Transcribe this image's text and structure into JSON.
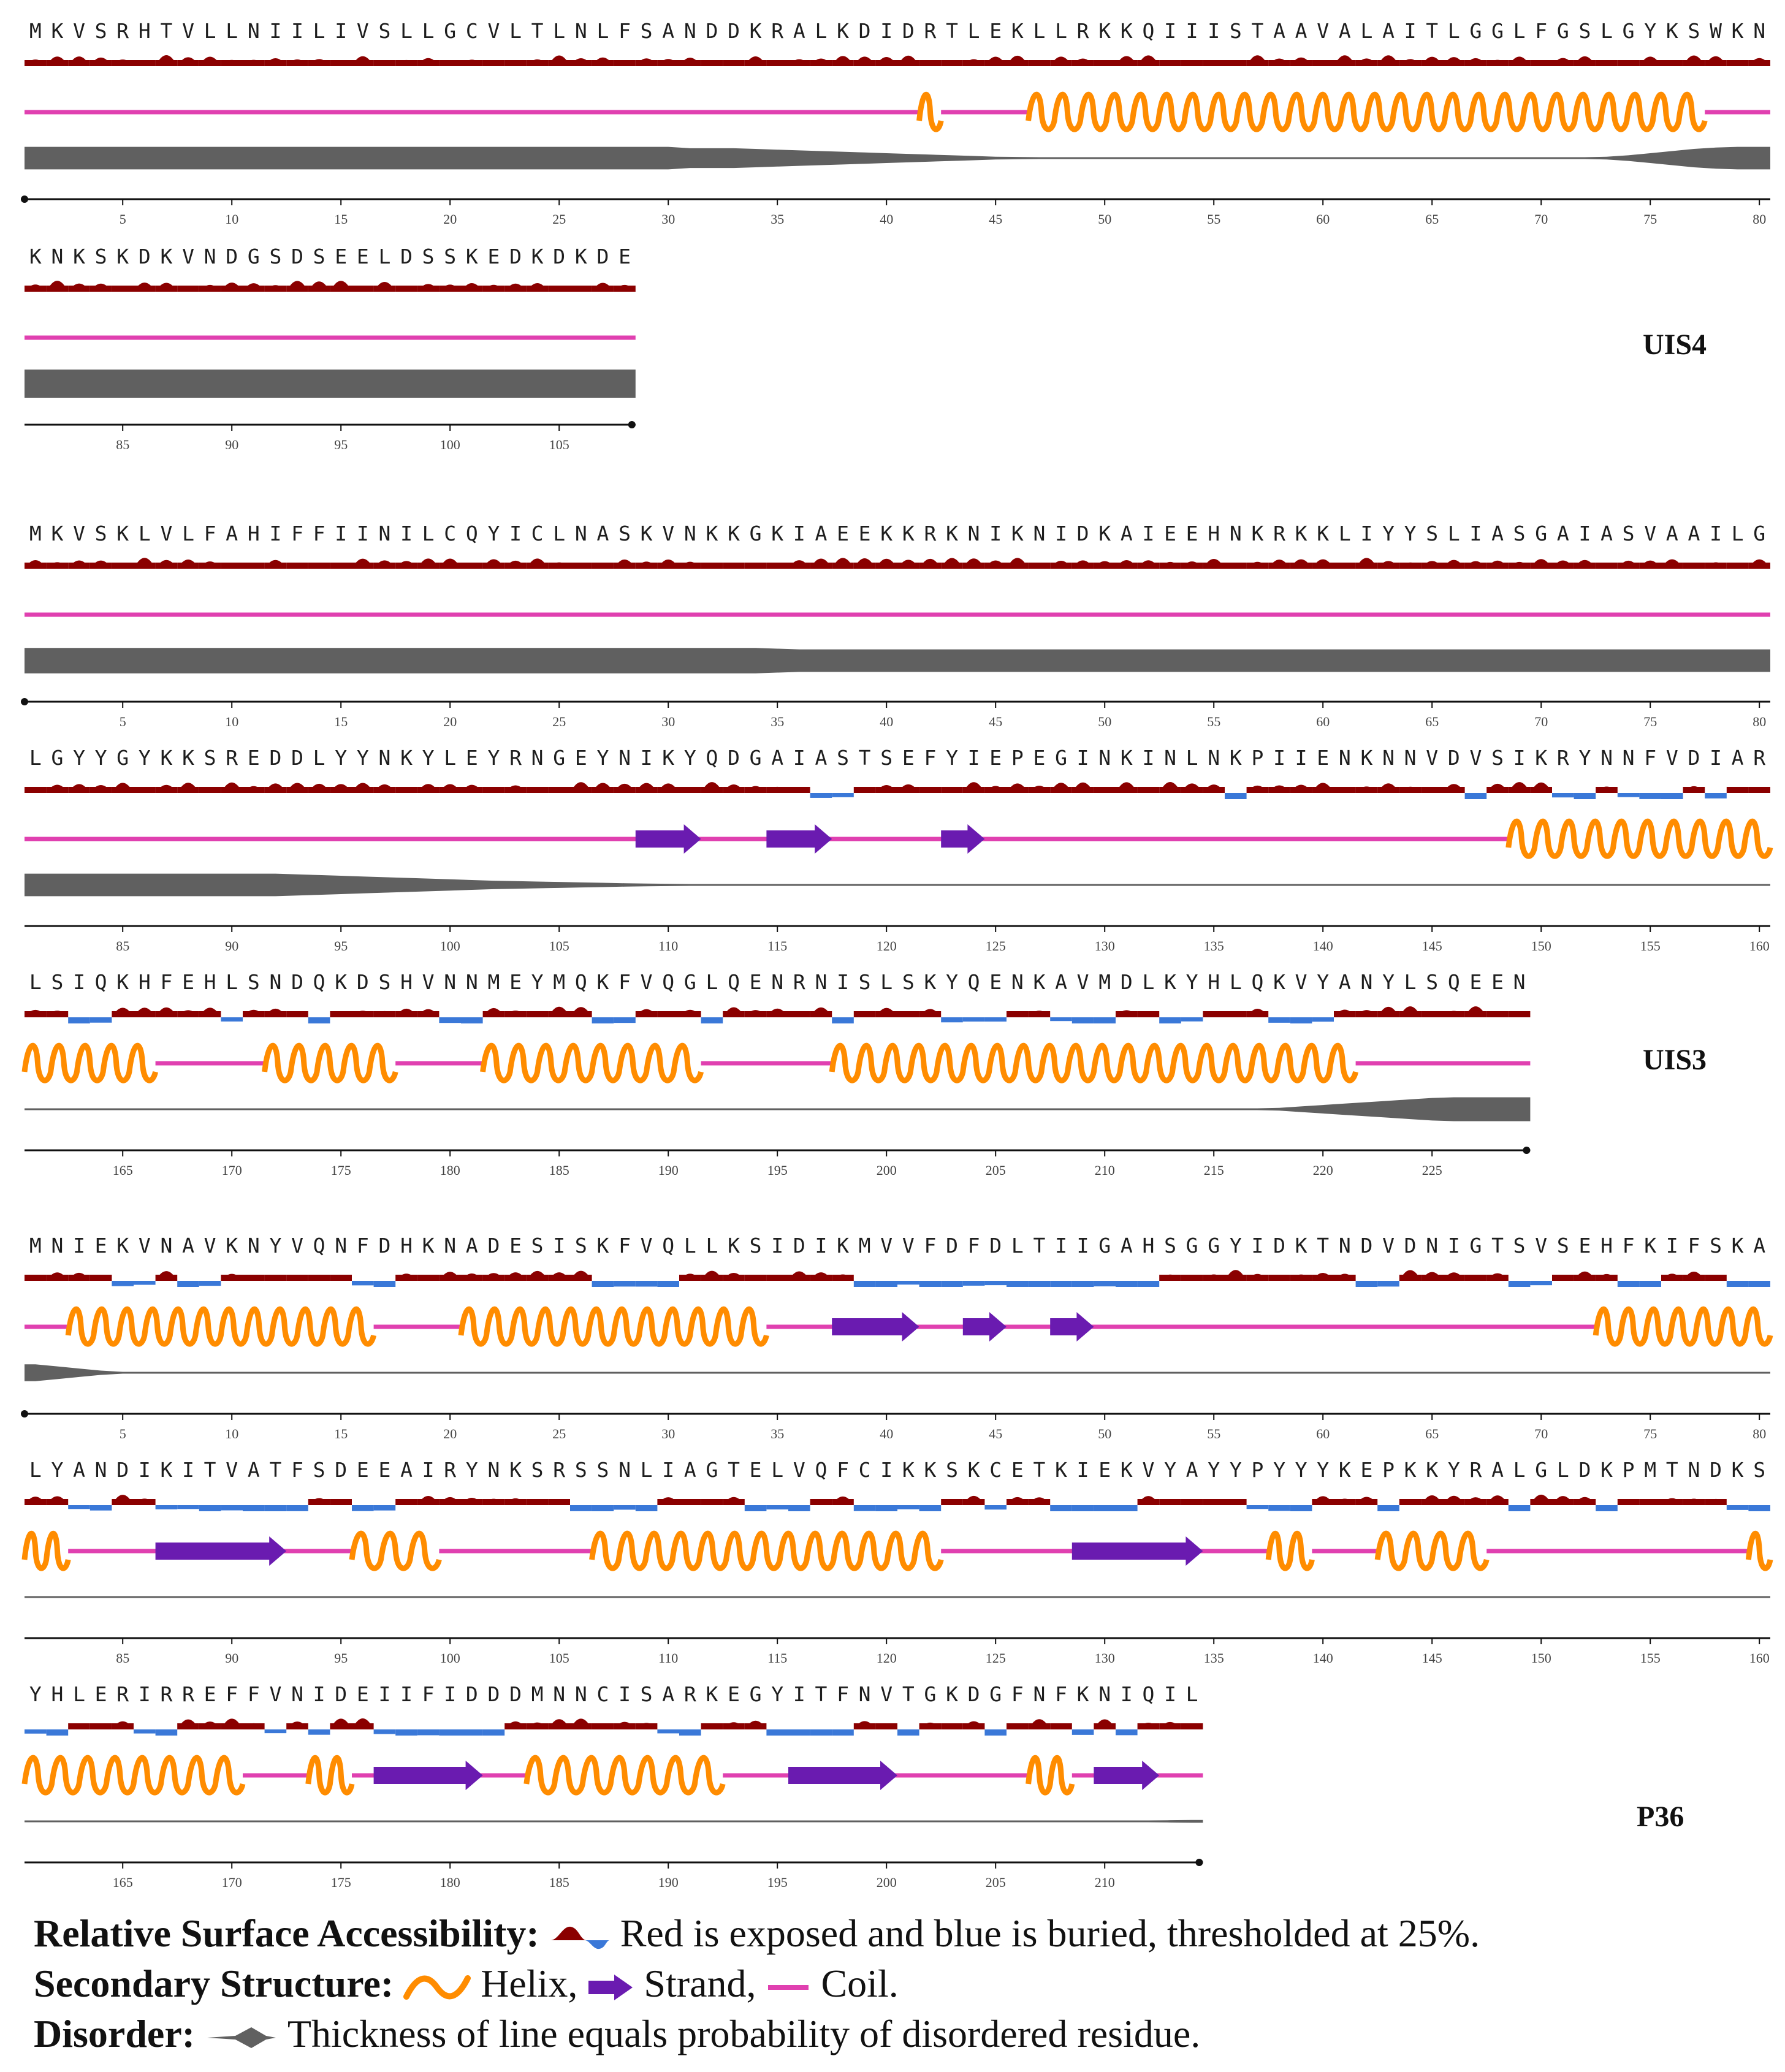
{
  "proteins": [
    {
      "name": "UIS4",
      "rows": [
        {
          "sequence": "MKVSRHTVLLNIILIVSLLGCVLTLNLFSANDDKRALKDIDRTLEKLLRKKQIIISTAAVALAITLGGLFGSLGYKSWKN",
          "start": 1,
          "ticks": [
            5,
            10,
            15,
            20,
            25,
            30,
            35,
            40,
            45,
            50,
            55,
            60,
            65,
            70,
            75,
            80
          ],
          "helix": [
            [
              42,
              42
            ],
            [
              47,
              77
            ]
          ],
          "strand": [],
          "buried": [],
          "disorder": [
            0.8,
            0.8,
            0.8,
            0.8,
            0.8,
            0.8,
            0.8,
            0.8,
            0.8,
            0.8,
            0.8,
            0.8,
            0.8,
            0.8,
            0.8,
            0.8,
            0.8,
            0.8,
            0.8,
            0.8,
            0.8,
            0.8,
            0.8,
            0.8,
            0.8,
            0.8,
            0.8,
            0.8,
            0.8,
            0.8,
            0.7,
            0.7,
            0.7,
            0.65,
            0.6,
            0.55,
            0.5,
            0.45,
            0.4,
            0.35,
            0.3,
            0.25,
            0.2,
            0.15,
            0.1,
            0.08,
            0.05,
            0.04,
            0.03,
            0.03,
            0.03,
            0.03,
            0.03,
            0.03,
            0.03,
            0.03,
            0.03,
            0.03,
            0.03,
            0.03,
            0.03,
            0.03,
            0.03,
            0.03,
            0.03,
            0.03,
            0.03,
            0.03,
            0.03,
            0.03,
            0.03,
            0.05,
            0.1,
            0.2,
            0.35,
            0.5,
            0.65,
            0.75,
            0.8,
            0.8
          ]
        },
        {
          "sequence": "KNKSKDKVNDGSDSEELDSSKEDKDKDE",
          "start": 81,
          "ticks": [
            85,
            90,
            95,
            100,
            105
          ],
          "helix": [],
          "strand": [],
          "buried": [],
          "disorder": [
            1,
            1,
            1,
            1,
            1,
            1,
            1,
            1,
            1,
            1,
            1,
            1,
            1,
            1,
            1,
            1,
            1,
            1,
            1,
            1,
            1,
            1,
            1,
            1,
            1,
            1,
            1,
            1
          ]
        }
      ]
    },
    {
      "name": "UIS3",
      "rows": [
        {
          "sequence": "MKVSKLVLFAHIFFIINILCQYICLNASKVNKKGKIAEEKKRKNIKNIDKAIEEHNKRKKLIYYSLIASGAIASVAAILG",
          "start": 1,
          "ticks": [
            5,
            10,
            15,
            20,
            25,
            30,
            35,
            40,
            45,
            50,
            55,
            60,
            65,
            70,
            75,
            80
          ],
          "helix": [],
          "strand": [],
          "buried": [],
          "disorder": [
            0.9,
            0.9,
            0.9,
            0.9,
            0.9,
            0.9,
            0.9,
            0.9,
            0.9,
            0.9,
            0.9,
            0.9,
            0.9,
            0.9,
            0.9,
            0.9,
            0.9,
            0.9,
            0.9,
            0.9,
            0.9,
            0.9,
            0.9,
            0.9,
            0.9,
            0.9,
            0.9,
            0.9,
            0.9,
            0.9,
            0.9,
            0.9,
            0.9,
            0.9,
            0.85,
            0.8,
            0.8,
            0.8,
            0.8,
            0.8,
            0.8,
            0.8,
            0.8,
            0.8,
            0.8,
            0.8,
            0.8,
            0.8,
            0.8,
            0.8,
            0.8,
            0.8,
            0.8,
            0.8,
            0.8,
            0.8,
            0.8,
            0.8,
            0.8,
            0.8,
            0.8,
            0.8,
            0.8,
            0.8,
            0.8,
            0.8,
            0.8,
            0.8,
            0.8,
            0.8,
            0.8,
            0.8,
            0.8,
            0.8,
            0.8,
            0.8,
            0.8,
            0.8,
            0.8,
            0.8
          ]
        },
        {
          "sequence": "LGYYGYKKSREDDLYYNKYLEYRNGEYNIKYQDGAIASTSEFYIEPEGINKINLNKPIIENKNNVDVSIKRYNNFVDIAR",
          "start": 81,
          "ticks": [
            85,
            90,
            95,
            100,
            105,
            110,
            115,
            120,
            125,
            130,
            135,
            140,
            145,
            150,
            155,
            160
          ],
          "helix": [
            [
              149,
              160
            ]
          ],
          "strand": [
            [
              109,
              111
            ],
            [
              115,
              117
            ],
            [
              123,
              124
            ]
          ],
          "buried": [
            [
              117,
              118
            ],
            [
              136,
              136
            ],
            [
              147,
              147
            ],
            [
              151,
              152
            ],
            [
              154,
              156
            ],
            [
              158,
              158
            ]
          ],
          "disorder": [
            0.8,
            0.8,
            0.8,
            0.8,
            0.8,
            0.8,
            0.8,
            0.8,
            0.8,
            0.8,
            0.8,
            0.8,
            0.75,
            0.7,
            0.65,
            0.6,
            0.55,
            0.5,
            0.45,
            0.4,
            0.35,
            0.3,
            0.27,
            0.24,
            0.21,
            0.18,
            0.15,
            0.12,
            0.1,
            0.08,
            0.06,
            0.05,
            0.05,
            0.05,
            0.05,
            0.05,
            0.05,
            0.05,
            0.05,
            0.05,
            0.05,
            0.05,
            0.05,
            0.05,
            0.05,
            0.05,
            0.05,
            0.05,
            0.05,
            0.05,
            0.05,
            0.05,
            0.05,
            0.05,
            0.05,
            0.05,
            0.05,
            0.05,
            0.05,
            0.05,
            0.05,
            0.05,
            0.05,
            0.05,
            0.05,
            0.05,
            0.05,
            0.05,
            0.05,
            0.05,
            0.05,
            0.05,
            0.05,
            0.05,
            0.05,
            0.05,
            0.05,
            0.05,
            0.05,
            0.05
          ]
        },
        {
          "sequence": "LSIQKHFEHLSNDQKDSHVNNMEYMQKFVQGLQENRNISLSKYQENKAVMDLKYHLQKVYANYLSQEEN",
          "start": 161,
          "ticks": [
            165,
            170,
            175,
            180,
            185,
            190,
            195,
            200,
            205,
            210,
            215,
            220,
            225
          ],
          "helix": [
            [
              161,
              166
            ],
            [
              172,
              177
            ],
            [
              182,
              191
            ],
            [
              198,
              221
            ]
          ],
          "strand": [],
          "buried": [
            [
              163,
              164
            ],
            [
              170,
              170
            ],
            [
              174,
              174
            ],
            [
              180,
              181
            ],
            [
              187,
              188
            ],
            [
              192,
              192
            ],
            [
              198,
              198
            ],
            [
              203,
              205
            ],
            [
              208,
              210
            ],
            [
              213,
              214
            ],
            [
              218,
              220
            ]
          ],
          "disorder": [
            0.05,
            0.05,
            0.05,
            0.05,
            0.05,
            0.05,
            0.05,
            0.05,
            0.05,
            0.05,
            0.05,
            0.05,
            0.05,
            0.05,
            0.05,
            0.05,
            0.05,
            0.05,
            0.05,
            0.05,
            0.05,
            0.05,
            0.05,
            0.05,
            0.05,
            0.05,
            0.05,
            0.05,
            0.05,
            0.05,
            0.05,
            0.05,
            0.05,
            0.05,
            0.05,
            0.05,
            0.05,
            0.05,
            0.05,
            0.05,
            0.05,
            0.05,
            0.05,
            0.05,
            0.05,
            0.05,
            0.05,
            0.05,
            0.05,
            0.05,
            0.05,
            0.05,
            0.05,
            0.05,
            0.05,
            0.05,
            0.05,
            0.1,
            0.2,
            0.3,
            0.4,
            0.5,
            0.6,
            0.7,
            0.8,
            0.85,
            0.85,
            0.85,
            0.85
          ]
        }
      ]
    },
    {
      "name": "P36",
      "rows": [
        {
          "sequence": "MNIEKVNAVKNYVQNFDHKNADESISKFVQLLKSIDIKMVVFDFDLTIIGAHSGGYIDKTNDVDNIGTSVSEHFKIFSKA",
          "start": 1,
          "ticks": [
            5,
            10,
            15,
            20,
            25,
            30,
            35,
            40,
            45,
            50,
            55,
            60,
            65,
            70,
            75,
            80
          ],
          "helix": [
            [
              3,
              16
            ],
            [
              21,
              34
            ],
            [
              73,
              80
            ]
          ],
          "strand": [
            [
              38,
              41
            ],
            [
              44,
              45
            ],
            [
              48,
              49
            ]
          ],
          "buried": [
            [
              5,
              6
            ],
            [
              8,
              9
            ],
            [
              16,
              17
            ],
            [
              27,
              30
            ],
            [
              39,
              52
            ],
            [
              62,
              63
            ],
            [
              69,
              70
            ],
            [
              74,
              75
            ],
            [
              79,
              80
            ]
          ],
          "disorder": [
            0.6,
            0.45,
            0.3,
            0.15,
            0.05,
            0.03,
            0.03,
            0.03,
            0.03,
            0.03,
            0.03,
            0.03,
            0.03,
            0.03,
            0.03,
            0.03,
            0.03,
            0.03,
            0.03,
            0.03,
            0.03,
            0.03,
            0.03,
            0.03,
            0.03,
            0.03,
            0.03,
            0.03,
            0.03,
            0.03,
            0.03,
            0.03,
            0.03,
            0.03,
            0.03,
            0.03,
            0.03,
            0.03,
            0.03,
            0.03,
            0.03,
            0.03,
            0.03,
            0.03,
            0.03,
            0.03,
            0.03,
            0.03,
            0.03,
            0.03,
            0.03,
            0.03,
            0.03,
            0.03,
            0.03,
            0.03,
            0.03,
            0.03,
            0.03,
            0.03,
            0.03,
            0.03,
            0.03,
            0.03,
            0.03,
            0.03,
            0.03,
            0.03,
            0.03,
            0.03,
            0.03,
            0.03,
            0.03,
            0.03,
            0.03,
            0.03,
            0.03,
            0.03,
            0.03,
            0.03
          ]
        },
        {
          "sequence": "LYANDIKITVATFSDEEAIRYNKSRSSNLIAGTELVQFCIKKSKCETKIEKVYAYYPYYYKEPKKYRALGLDKPMTNDKS",
          "start": 81,
          "ticks": [
            85,
            90,
            95,
            100,
            105,
            110,
            115,
            120,
            125,
            130,
            135,
            140,
            145,
            150,
            155,
            160
          ],
          "helix": [
            [
              81,
              82
            ],
            [
              96,
              99
            ],
            [
              107,
              122
            ],
            [
              138,
              139
            ],
            [
              143,
              147
            ],
            [
              160,
              160
            ]
          ],
          "strand": [
            [
              87,
              92
            ],
            [
              129,
              134
            ]
          ],
          "buried": [
            [
              83,
              84
            ],
            [
              87,
              93
            ],
            [
              96,
              97
            ],
            [
              106,
              109
            ],
            [
              114,
              116
            ],
            [
              119,
              122
            ],
            [
              125,
              125
            ],
            [
              128,
              131
            ],
            [
              137,
              139
            ],
            [
              143,
              143
            ],
            [
              149,
              149
            ],
            [
              153,
              153
            ],
            [
              159,
              160
            ]
          ],
          "disorder": [
            0.03,
            0.03,
            0.03,
            0.03,
            0.03,
            0.03,
            0.03,
            0.03,
            0.03,
            0.03,
            0.03,
            0.03,
            0.03,
            0.03,
            0.03,
            0.03,
            0.03,
            0.03,
            0.03,
            0.03,
            0.03,
            0.03,
            0.03,
            0.03,
            0.03,
            0.03,
            0.03,
            0.03,
            0.03,
            0.03,
            0.03,
            0.03,
            0.03,
            0.03,
            0.03,
            0.03,
            0.03,
            0.03,
            0.03,
            0.03,
            0.03,
            0.03,
            0.03,
            0.03,
            0.03,
            0.03,
            0.03,
            0.03,
            0.03,
            0.03,
            0.03,
            0.03,
            0.03,
            0.03,
            0.03,
            0.03,
            0.03,
            0.03,
            0.03,
            0.03,
            0.03,
            0.03,
            0.03,
            0.03,
            0.03,
            0.03,
            0.03,
            0.03,
            0.03,
            0.03,
            0.03,
            0.03,
            0.03,
            0.03,
            0.03,
            0.03,
            0.03,
            0.03,
            0.03,
            0.03
          ]
        },
        {
          "sequence": "YHLERIRREFFVNIDEIIFIDDDMNNCISARKEGYITFNVTGKDGFNFKNIQIL",
          "start": 161,
          "ticks": [
            165,
            170,
            175,
            180,
            185,
            190,
            195,
            200,
            205,
            210
          ],
          "helix": [
            [
              161,
              170
            ],
            [
              174,
              175
            ],
            [
              184,
              192
            ],
            [
              207,
              208
            ]
          ],
          "strand": [
            [
              177,
              181
            ],
            [
              196,
              200
            ],
            [
              210,
              212
            ]
          ],
          "buried": [
            [
              161,
              162
            ],
            [
              166,
              167
            ],
            [
              172,
              172
            ],
            [
              174,
              174
            ],
            [
              177,
              182
            ],
            [
              190,
              191
            ],
            [
              195,
              198
            ],
            [
              201,
              201
            ],
            [
              205,
              205
            ],
            [
              209,
              209
            ],
            [
              211,
              211
            ]
          ],
          "disorder": [
            0.03,
            0.03,
            0.03,
            0.03,
            0.03,
            0.03,
            0.03,
            0.03,
            0.03,
            0.03,
            0.03,
            0.03,
            0.03,
            0.03,
            0.03,
            0.03,
            0.03,
            0.03,
            0.03,
            0.03,
            0.03,
            0.03,
            0.03,
            0.03,
            0.03,
            0.03,
            0.03,
            0.03,
            0.03,
            0.03,
            0.03,
            0.03,
            0.03,
            0.03,
            0.03,
            0.03,
            0.03,
            0.03,
            0.03,
            0.03,
            0.03,
            0.03,
            0.03,
            0.03,
            0.03,
            0.03,
            0.03,
            0.03,
            0.03,
            0.03,
            0.03,
            0.05,
            0.08,
            0.1
          ]
        }
      ]
    }
  ],
  "legend": {
    "rsa_title": "Relative Surface Accessibility:",
    "rsa_desc": "Red is exposed and blue is buried, thresholded at 25%.",
    "ss_title": "Secondary Structure:",
    "ss_helix": "Helix,",
    "ss_strand": "Strand,",
    "ss_coil": "Coil.",
    "dis_title": "Disorder:",
    "dis_desc": "Thickness of line equals probability of disordered residue."
  },
  "colors": {
    "exposed": "#8b0000",
    "buried": "#3a78d8",
    "helix": "#ff8c00",
    "strand": "#6a1bb0",
    "coil": "#e040b0",
    "disorder": "#606060",
    "axis": "#111111"
  }
}
